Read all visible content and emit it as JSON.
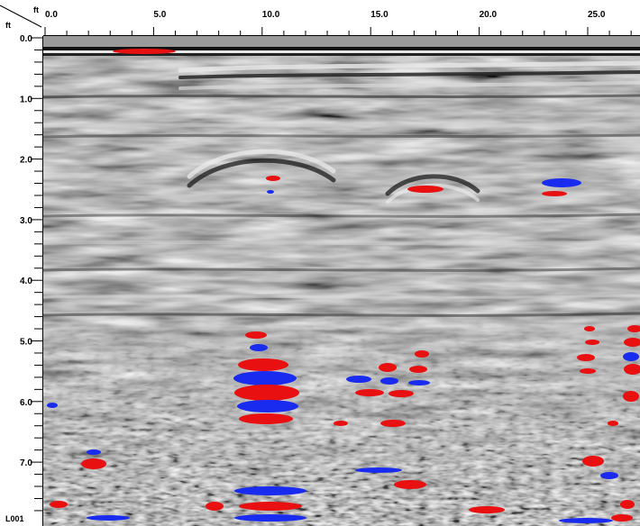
{
  "corner": {
    "x_unit": "ft",
    "y_unit": "ft"
  },
  "x_axis": {
    "ticks": [
      "0.0",
      "5.0",
      "10.0",
      "15.0",
      "20.0",
      "25.0"
    ],
    "values": [
      0,
      5,
      10,
      15,
      20,
      25
    ],
    "max": 27
  },
  "y_axis": {
    "ticks": [
      "0.0",
      "1.0",
      "2.0",
      "3.0",
      "4.0",
      "5.0",
      "6.0",
      "7.0"
    ],
    "values": [
      0,
      1,
      2,
      3,
      4,
      5,
      6,
      7
    ],
    "max": 7.8
  },
  "line_label": "L001",
  "colors": {
    "positive": "#e81010",
    "negative": "#1a2bf0",
    "background": "#808080"
  },
  "icons": {
    "corner": "diagonal-divider-icon"
  }
}
